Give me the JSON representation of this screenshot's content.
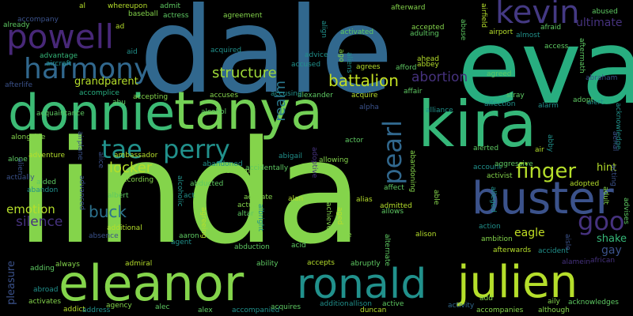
{
  "colors": {
    "background": "#000000",
    "palette": [
      "#440154",
      "#3b528b",
      "#21918c",
      "#28ae80",
      "#5ec962",
      "#84d44b",
      "#b5de2b",
      "#fde725"
    ]
  },
  "words": {
    "linda": "linda",
    "dale": "dale",
    "eva": "eva",
    "kira": "kira",
    "donnie": "donnie",
    "tanya": "tanya",
    "eleanor": "eleanor",
    "ronald": "ronald",
    "julien": "julien",
    "buster": "buster",
    "powell": "powell",
    "harmony": "harmony",
    "kevin": "kevin",
    "tae": "tae",
    "perry": "perry",
    "pearl": "pearl",
    "finger": "finger",
    "goo": "goo",
    "locker": "locker",
    "buck": "buck",
    "silence": "silence",
    "emotion": "emotion",
    "structure": "structure",
    "battalion": "battalion",
    "abortion": "abortion",
    "realm": "realm",
    "grandparent": "grandparent",
    "ultimate": "ultimate",
    "eagle": "eagle",
    "shake": "shake",
    "hint": "hint",
    "gay": "gay",
    "pleasure": "pleasure",
    "acquaintance": "acquaintance",
    "accomplice": "accomplice",
    "alexander": "alexander",
    "accusing": "accusing",
    "acquire": "acquire",
    "alliance": "alliance",
    "accuses": "accuses",
    "alcohol": "alcohol",
    "afterlife": "afterlife",
    "advantage": "advantage",
    "aircraft": "aircraft",
    "accepting": "accepting",
    "ambassador": "ambassador",
    "abandoned": "abandoned",
    "accidentally": "accidentally",
    "allowing": "allowing",
    "account": "account",
    "aggressive": "aggressive",
    "activist": "activist",
    "adopted": "adopted",
    "alerted": "alerted",
    "abigail": "abigail",
    "according": "according",
    "abducted": "abducted",
    "activate": "activate",
    "alias": "alias",
    "affect": "affect",
    "admitted": "admitted",
    "allows": "allows",
    "alison": "alison",
    "ambition": "ambition",
    "action": "action",
    "afterwards": "afterwards",
    "accident": "accident",
    "additional": "additional",
    "albert": "albert",
    "adventure": "adventure",
    "actually": "actually",
    "abandon": "abandon",
    "aided": "aided",
    "alien": "alien",
    "alone": "alone",
    "alongside": "alongside",
    "abroad": "abroad",
    "activates": "activates",
    "addict": "addict",
    "address": "address",
    "agency": "agency",
    "alec": "alec",
    "alex": "alex",
    "accompanied": "accompanied",
    "acquires": "acquires",
    "addition": "addition",
    "allison": "allison",
    "duncan": "duncan",
    "active": "active",
    "activity": "activity",
    "accompanies": "accompanies",
    "although": "although",
    "acknowledges": "acknowledges",
    "abused": "abused",
    "agreement": "agreement",
    "afterward": "afterward",
    "airport": "airport",
    "almost": "almost",
    "afraid": "afraid",
    "activated": "activated",
    "accepted": "accepted",
    "adulting": "adulting",
    "advice": "advice",
    "accused": "accused",
    "agrees": "agrees",
    "abbey": "abbey",
    "ahead": "ahead",
    "afford": "afford",
    "affair": "affair",
    "agreed": "agreed",
    "abraham": "abraham",
    "affection": "affection",
    "alarm": "alarm",
    "adopt": "adopt",
    "alert": "alert",
    "alto": "alto",
    "accompany": "accompany",
    "already": "already",
    "whereupon": "whereupon",
    "baseball": "baseball",
    "actress": "actress",
    "admit": "admit",
    "age": "age",
    "aim": "aim",
    "ad": "ad",
    "aid": "aid",
    "act": "act",
    "air": "air",
    "aaron": "aaron",
    "agent": "agent",
    "admiral": "admiral",
    "adding": "adding",
    "always": "always",
    "abortion_small": "accuse",
    "accounts": "accounts",
    "actor": "actor",
    "accepts": "accepts",
    "abruptly": "abruptly",
    "ability": "ability",
    "acid": "acid",
    "abduction": "abduction",
    "altar": "altar",
    "actual": "actual",
    "achieve": "achieve",
    "aged": "aged",
    "allie": "allie",
    "add": "add",
    "aily": "aily",
    "african": "african",
    "alamein": "alamein",
    "absence": "absence",
    "academy": "academy",
    "admiration": "admiration",
    "alpha": "alpha",
    "abraham2": "abe",
    "adult": "adult",
    "acting": "acting",
    "advises": "advises",
    "abu": "abu",
    "alice": "alice",
    "align": "align",
    "ago": "ago",
    "aliens": "aliens",
    "acquired": "acquired",
    "al": "al",
    "abuse": "abuse",
    "aftermath": "aftermath",
    "adoptive": "adoptive",
    "aerial": "aerial",
    "aisle": "aisle",
    "abby": "abby",
    "airfield": "airfield",
    "alleged": "alleged",
    "alternate": "alternate",
    "albright": "albright",
    "agreeing": "agreeing",
    "alcoholic": "alcoholic",
    "airplane": "airplane",
    "advanced": "advanced",
    "abandoning": "abandoning",
    "able": "able",
    "alive": "alive",
    "acknowledge": "acknowledge",
    "access": "access",
    "alan": "alan",
    "stray": "stray",
    "ala": "ala"
  }
}
